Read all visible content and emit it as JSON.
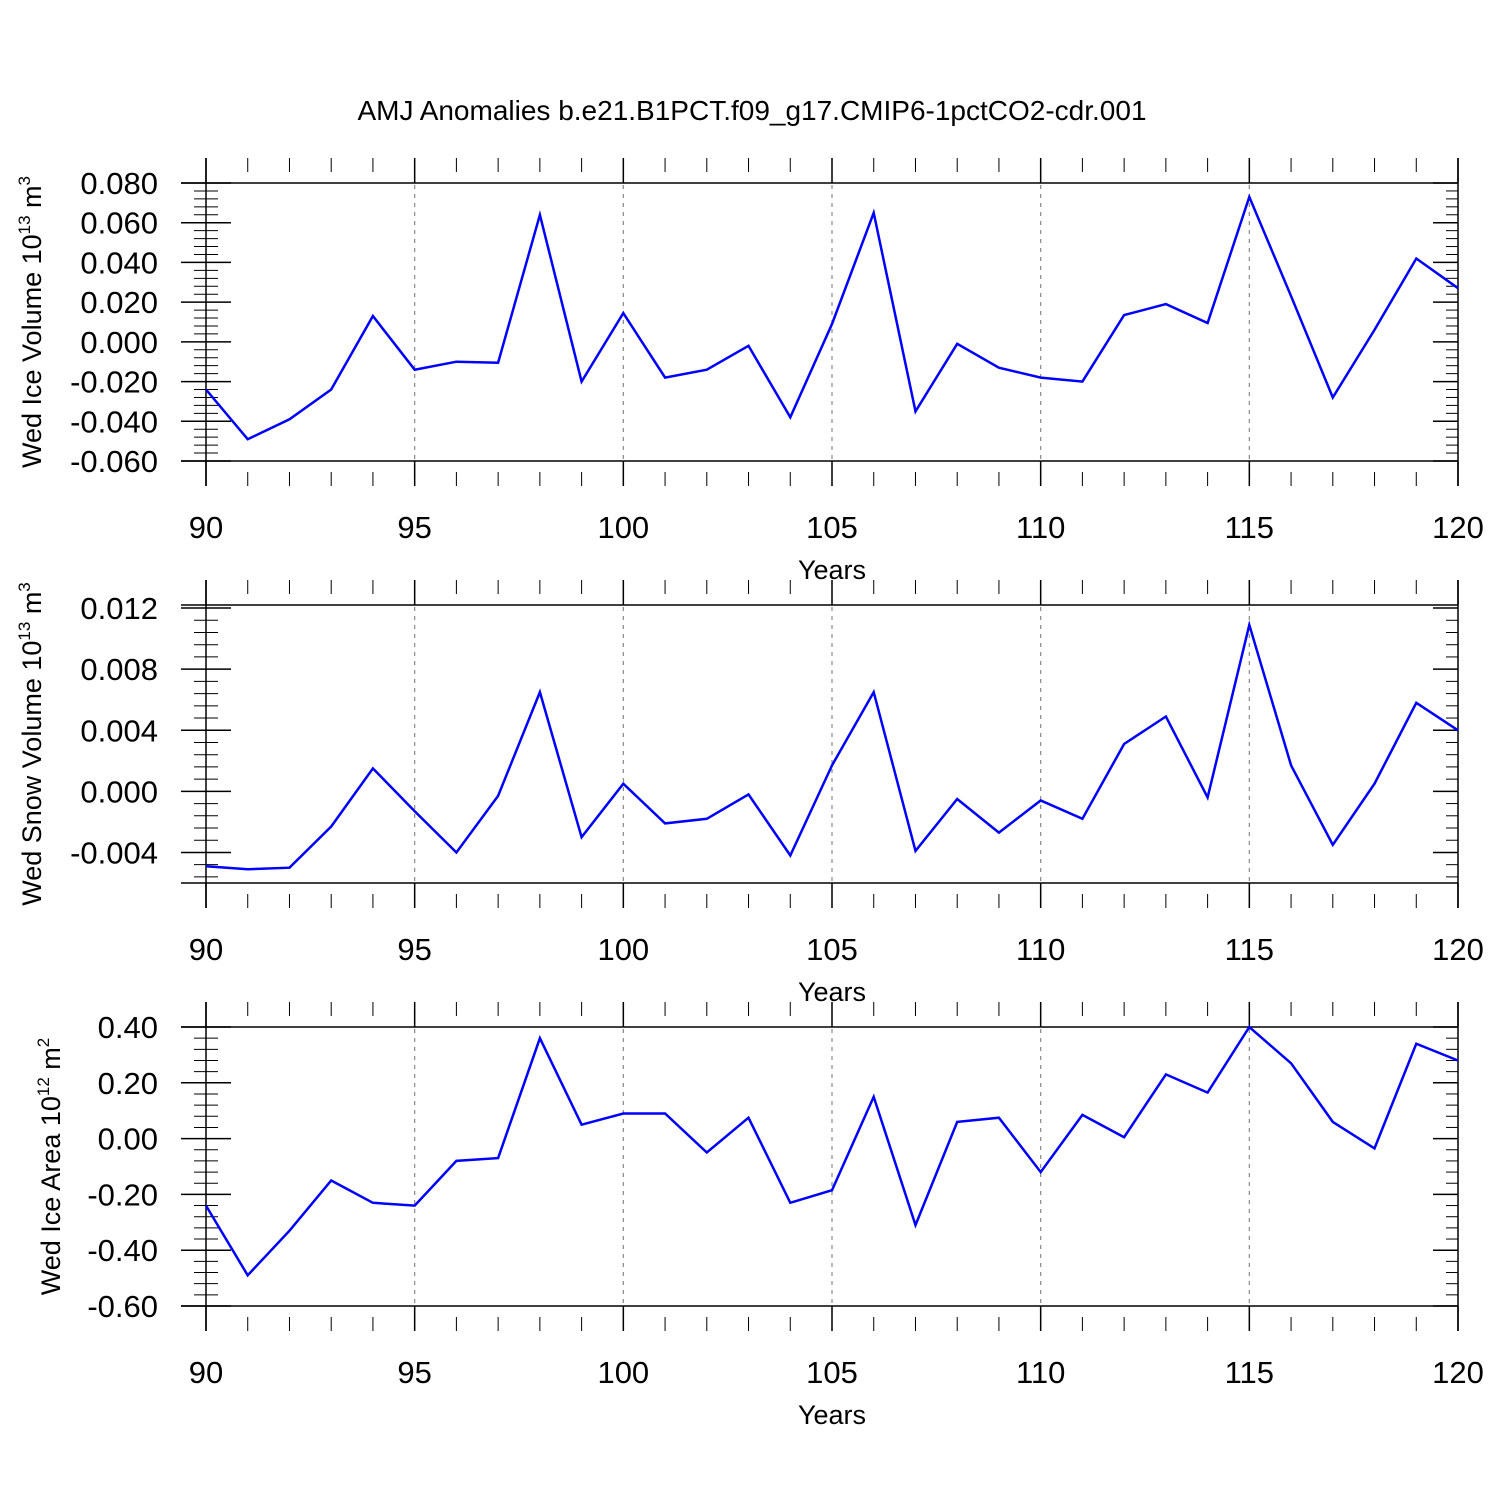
{
  "title": "AMJ Anomalies b.e21.B1PCT.f09_g17.CMIP6-1pctCO2-cdr.001",
  "colors": {
    "line": "#0000ff",
    "axis": "#000000",
    "grid": "#888888"
  },
  "chart_data": [
    {
      "type": "line",
      "ylabel_main": "Wed Ice Volume 10",
      "ylabel_exp1": "13",
      "ylabel_unit": " m",
      "ylabel_exp2": "3",
      "xlabel": "Years",
      "xlim": [
        90,
        120
      ],
      "ylim": [
        -0.06,
        0.08
      ],
      "yticks": [
        -0.06,
        -0.04,
        -0.02,
        0.0,
        0.02,
        0.04,
        0.06,
        0.08
      ],
      "ytick_labels": [
        "-0.060",
        "-0.040",
        "-0.020",
        "0.000",
        "0.020",
        "0.040",
        "0.060",
        "0.080"
      ],
      "xticks": [
        90,
        95,
        100,
        105,
        110,
        115,
        120
      ],
      "xtick_labels": [
        "90",
        "95",
        "100",
        "105",
        "110",
        "115",
        "120"
      ],
      "x": [
        90,
        91,
        92,
        93,
        94,
        95,
        96,
        97,
        98,
        99,
        100,
        101,
        102,
        103,
        104,
        105,
        106,
        107,
        108,
        109,
        110,
        111,
        112,
        113,
        114,
        115,
        116,
        117,
        118,
        119,
        120
      ],
      "values": [
        -0.024,
        -0.049,
        -0.039,
        -0.024,
        0.013,
        -0.014,
        -0.01,
        -0.0105,
        0.064,
        -0.02,
        0.0145,
        -0.018,
        -0.014,
        -0.002,
        -0.038,
        0.009,
        0.065,
        -0.035,
        -0.001,
        -0.013,
        -0.018,
        -0.02,
        0.0135,
        0.019,
        0.0095,
        0.073,
        0.023,
        -0.028,
        0.006,
        0.042,
        0.027
      ]
    },
    {
      "type": "line",
      "ylabel_main": "Wed Snow Volume 10",
      "ylabel_exp1": "13",
      "ylabel_unit": " m",
      "ylabel_exp2": "3",
      "xlabel": "Years",
      "xlim": [
        90,
        120
      ],
      "ylim": [
        -0.006,
        0.0122
      ],
      "yticks": [
        -0.004,
        0.0,
        0.004,
        0.008,
        0.012
      ],
      "ytick_labels": [
        "-0.004",
        "0.000",
        "0.004",
        "0.008",
        "0.012"
      ],
      "xticks": [
        90,
        95,
        100,
        105,
        110,
        115,
        120
      ],
      "xtick_labels": [
        "90",
        "95",
        "100",
        "105",
        "110",
        "115",
        "120"
      ],
      "x": [
        90,
        91,
        92,
        93,
        94,
        95,
        96,
        97,
        98,
        99,
        100,
        101,
        102,
        103,
        104,
        105,
        106,
        107,
        108,
        109,
        110,
        111,
        112,
        113,
        114,
        115,
        116,
        117,
        118,
        119,
        120
      ],
      "values": [
        -0.0049,
        -0.0051,
        -0.005,
        -0.0023,
        0.0015,
        -0.0013,
        -0.004,
        -0.0003,
        0.0065,
        -0.003,
        0.0005,
        -0.0021,
        -0.0018,
        -0.0002,
        -0.0042,
        0.0017,
        0.0065,
        -0.0039,
        -0.0005,
        -0.0027,
        -0.0006,
        -0.0018,
        0.0031,
        0.0049,
        -0.0004,
        0.0109,
        0.0017,
        -0.0035,
        0.0005,
        0.0058,
        0.004
      ]
    },
    {
      "type": "line",
      "ylabel_main": "Wed Ice Area 10",
      "ylabel_exp1": "12",
      "ylabel_unit": " m",
      "ylabel_exp2": "2",
      "xlabel": "Years",
      "xlim": [
        90,
        120
      ],
      "ylim": [
        -0.6,
        0.4
      ],
      "yticks": [
        -0.6,
        -0.4,
        -0.2,
        0.0,
        0.2,
        0.4
      ],
      "ytick_labels": [
        "-0.60",
        "-0.40",
        "-0.20",
        "0.00",
        "0.20",
        "0.40"
      ],
      "xticks": [
        90,
        95,
        100,
        105,
        110,
        115,
        120
      ],
      "xtick_labels": [
        "90",
        "95",
        "100",
        "105",
        "110",
        "115",
        "120"
      ],
      "x": [
        90,
        91,
        92,
        93,
        94,
        95,
        96,
        97,
        98,
        99,
        100,
        101,
        102,
        103,
        104,
        105,
        106,
        107,
        108,
        109,
        110,
        111,
        112,
        113,
        114,
        115,
        116,
        117,
        118,
        119,
        120
      ],
      "values": [
        -0.24,
        -0.49,
        -0.33,
        -0.15,
        -0.23,
        -0.24,
        -0.08,
        -0.07,
        0.36,
        0.05,
        0.09,
        0.09,
        -0.05,
        0.075,
        -0.23,
        -0.185,
        0.15,
        -0.31,
        0.06,
        0.075,
        -0.12,
        0.085,
        0.005,
        0.23,
        0.165,
        0.4,
        0.27,
        0.06,
        -0.035,
        0.34,
        0.28
      ]
    }
  ]
}
